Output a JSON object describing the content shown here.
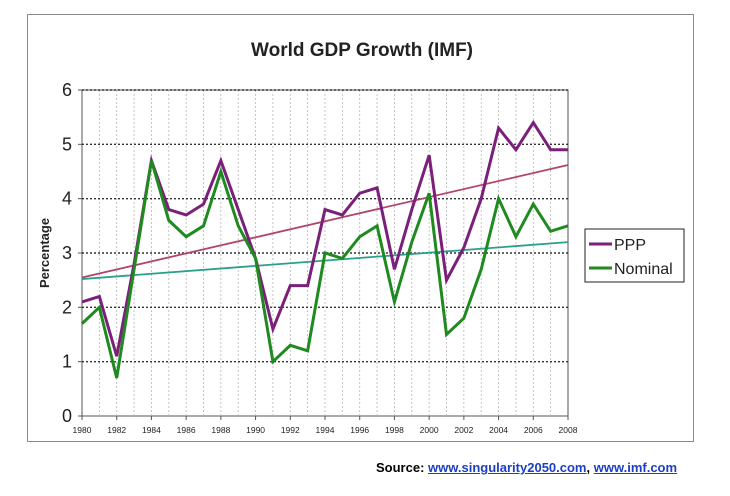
{
  "chart_data": {
    "type": "line",
    "title": "World GDP Growth (IMF)",
    "ylabel": "Percentage",
    "xlabel": "",
    "ylim": [
      0,
      6
    ],
    "yticks": [
      0,
      1,
      2,
      3,
      4,
      5,
      6
    ],
    "xlim": [
      1980,
      2008
    ],
    "xticks": [
      1980,
      1982,
      1984,
      1986,
      1988,
      1990,
      1992,
      1994,
      1996,
      1998,
      2000,
      2002,
      2004,
      2006,
      2008
    ],
    "grid": true,
    "legend_position": "right",
    "x": [
      1980,
      1981,
      1982,
      1983,
      1984,
      1985,
      1986,
      1987,
      1988,
      1989,
      1990,
      1991,
      1992,
      1993,
      1994,
      1995,
      1996,
      1997,
      1998,
      1999,
      2000,
      2001,
      2002,
      2003,
      2004,
      2005,
      2006,
      2007,
      2008
    ],
    "series": [
      {
        "name": "PPP",
        "color": "#7a1f7a",
        "values": [
          2.1,
          2.2,
          1.1,
          2.8,
          4.7,
          3.8,
          3.7,
          3.9,
          4.7,
          3.8,
          2.9,
          1.6,
          2.4,
          2.4,
          3.8,
          3.7,
          4.1,
          4.2,
          2.7,
          3.8,
          4.8,
          2.5,
          3.1,
          4.0,
          5.3,
          4.9,
          5.4,
          4.9,
          4.9
        ],
        "trend": [
          2.55,
          4.62
        ],
        "trend_color": "#b0446a"
      },
      {
        "name": "Nominal",
        "color": "#1f8a1f",
        "values": [
          1.7,
          2.0,
          0.7,
          2.7,
          4.7,
          3.6,
          3.3,
          3.5,
          4.5,
          3.5,
          2.9,
          1.0,
          1.3,
          1.2,
          3.0,
          2.9,
          3.3,
          3.5,
          2.1,
          3.2,
          4.1,
          1.5,
          1.8,
          2.7,
          4.0,
          3.3,
          3.9,
          3.4,
          3.5
        ],
        "trend": [
          2.52,
          3.2
        ],
        "trend_color": "#2aa08a"
      }
    ]
  },
  "source": {
    "label": "Source:",
    "links": [
      "www.singularity2050.com",
      "www.imf.com"
    ],
    "separator": ","
  }
}
